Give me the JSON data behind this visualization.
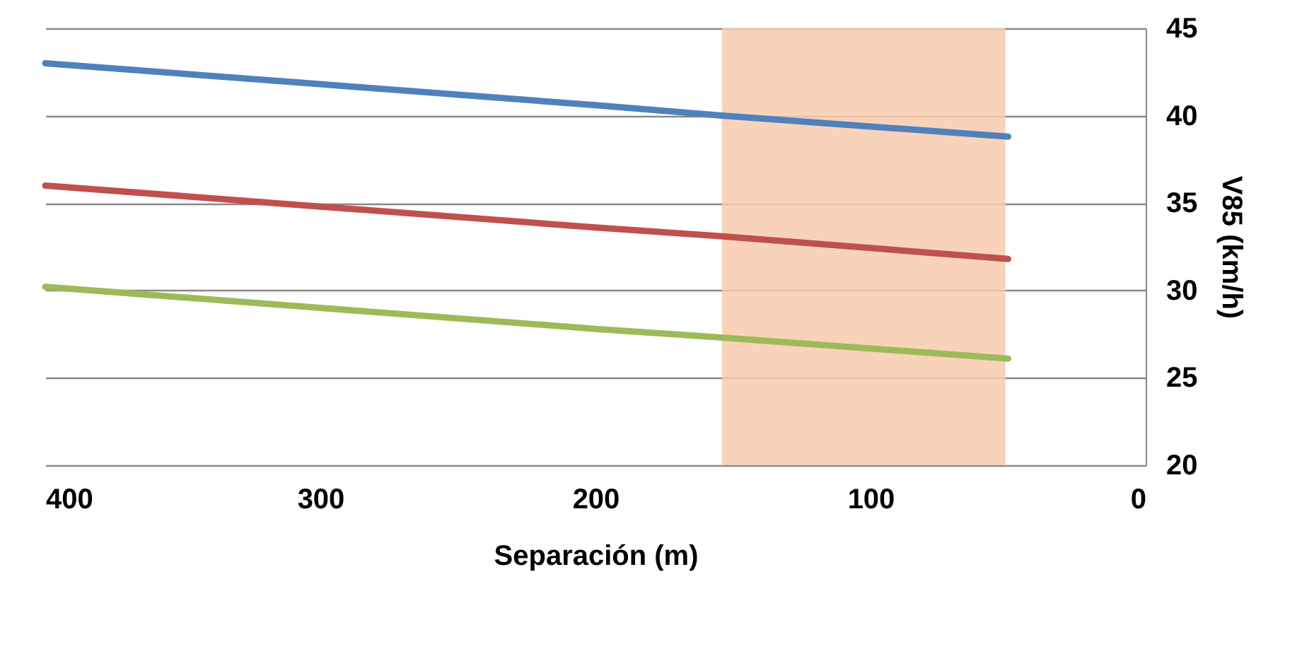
{
  "chart_data": {
    "type": "line",
    "xlabel": "Separación (m)",
    "ylabel": "V85 (km/h)",
    "x": [
      400,
      300,
      200,
      154,
      50
    ],
    "series": [
      {
        "color": "#4f81bd",
        "values": [
          43,
          41.8,
          40.6,
          40.0,
          38.8
        ]
      },
      {
        "color": "#c0504d",
        "values": [
          36,
          34.8,
          33.6,
          33.1,
          31.8
        ]
      },
      {
        "color": "#9bbb59",
        "values": [
          30.2,
          29.0,
          27.8,
          27.3,
          26.1
        ]
      }
    ],
    "xlim": [
      400,
      0
    ],
    "xticks": [
      400,
      300,
      200,
      100,
      0
    ],
    "ylim": [
      20,
      45
    ],
    "yticks": [
      20,
      25,
      30,
      35,
      40,
      45
    ],
    "grid": "y",
    "legend": false,
    "marker": "none",
    "line_style": "solid",
    "bands": [
      {
        "axis": "x",
        "from": 154,
        "to": 51,
        "color": "#f8cbad"
      }
    ]
  }
}
